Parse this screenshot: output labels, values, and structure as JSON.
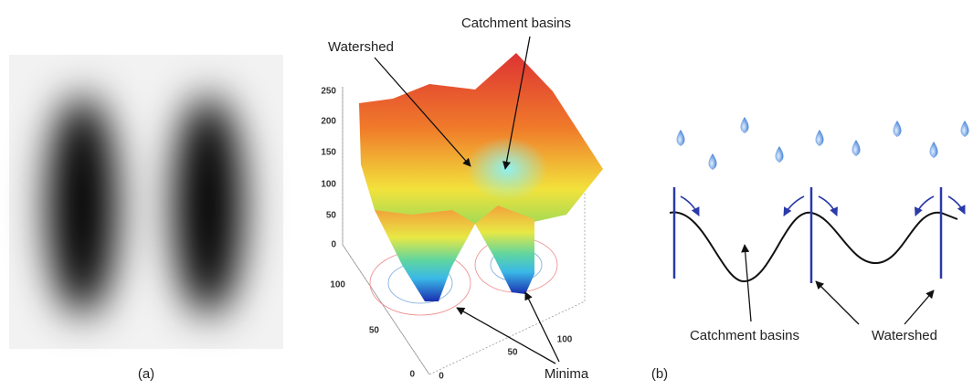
{
  "image_panel": {
    "caption": "(a)"
  },
  "surface_panel": {
    "annotations": {
      "watershed": "Watershed",
      "basins": "Catchment basins",
      "minima": "Minima"
    },
    "z_ticks": [
      "250",
      "200",
      "150",
      "100",
      "50",
      "0"
    ],
    "y_ticks": [
      "100",
      "50",
      "0"
    ],
    "x_ticks": [
      "0",
      "50",
      "100"
    ]
  },
  "schematic_panel": {
    "caption": "(b)",
    "labels": {
      "basins": "Catchment basins",
      "watershed": "Watershed"
    }
  }
}
